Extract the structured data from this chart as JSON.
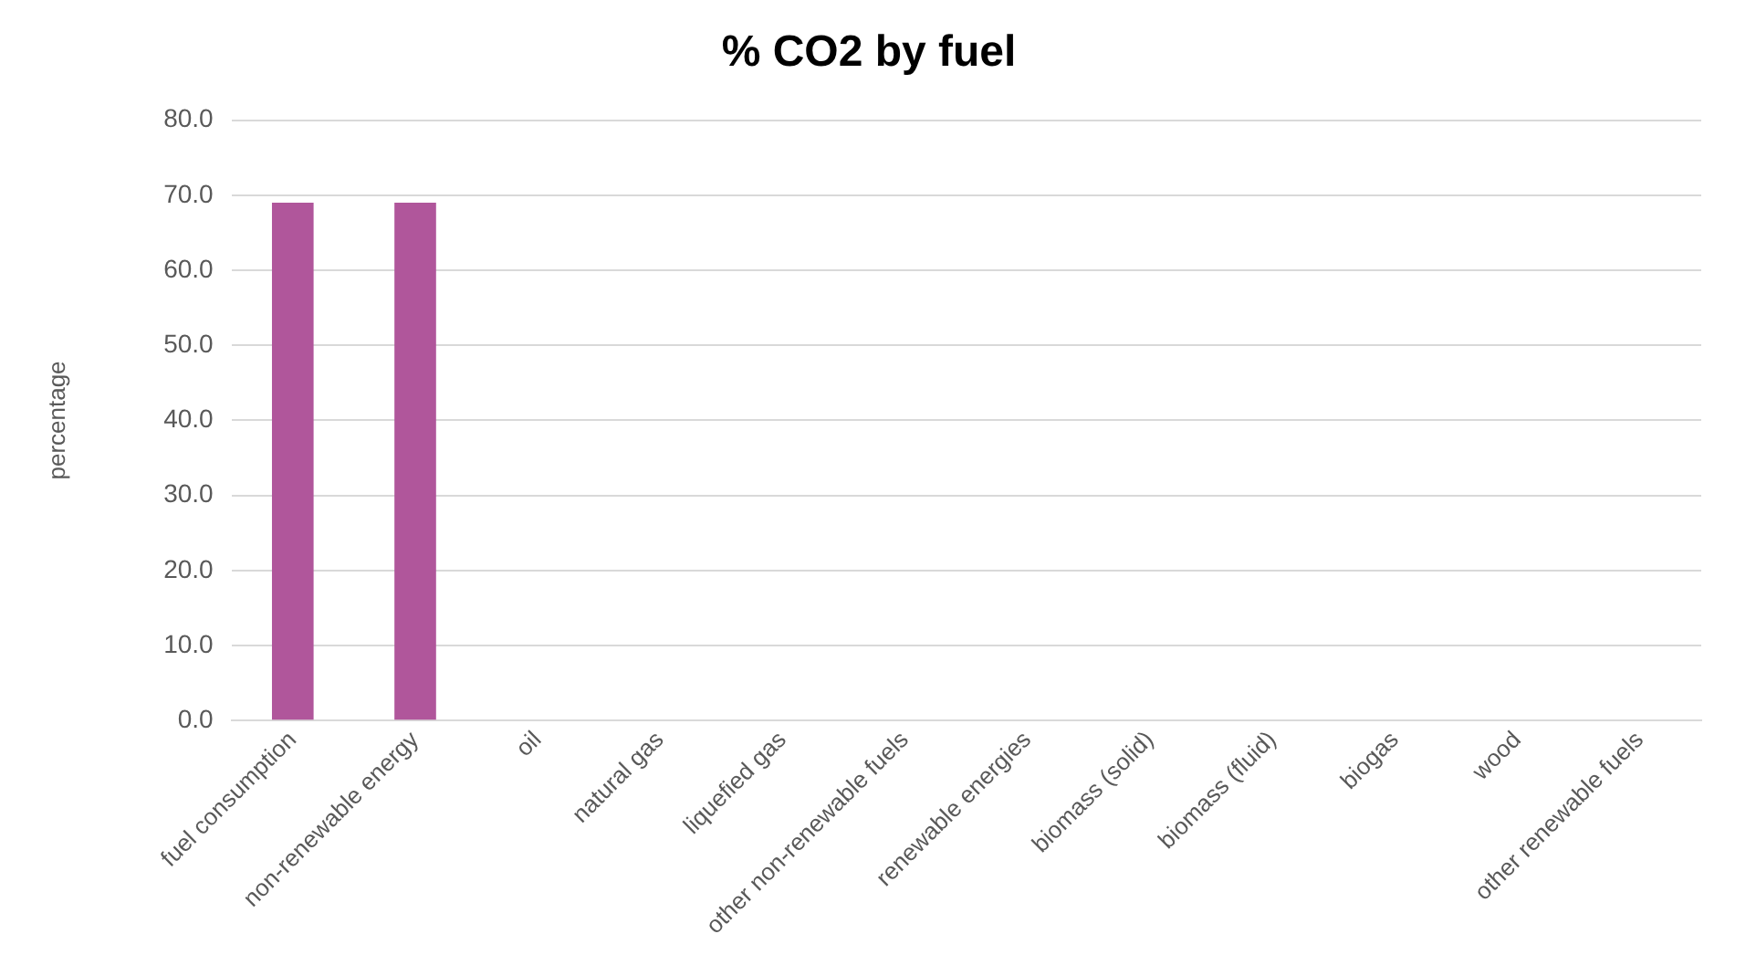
{
  "chart_data": {
    "type": "bar",
    "title": "% CO2 by fuel",
    "ylabel": "percentage",
    "categories": [
      "fuel consumption",
      "non-renewable energy",
      "oil",
      "natural gas",
      "liquefied gas",
      "other non-renewable fuels",
      "renewable energies",
      "biomass (solid)",
      "biomass (fluid)",
      "biogas",
      "wood",
      "other renewable fuels"
    ],
    "values": [
      69.0,
      69.0,
      0,
      0,
      0,
      0,
      0,
      0,
      0,
      0,
      0,
      0
    ],
    "color": "#b0569b",
    "ylim": [
      0,
      80
    ],
    "yticks": [
      {
        "value": 0,
        "label": "0.0"
      },
      {
        "value": 10,
        "label": "10.0"
      },
      {
        "value": 20,
        "label": "20.0"
      },
      {
        "value": 30,
        "label": "30.0"
      },
      {
        "value": 40,
        "label": "40.0"
      },
      {
        "value": 50,
        "label": "50.0"
      },
      {
        "value": 60,
        "label": "60.0"
      },
      {
        "value": 70,
        "label": "70.0"
      },
      {
        "value": 80,
        "label": "80.0"
      }
    ],
    "grid": "y",
    "legend": false
  }
}
